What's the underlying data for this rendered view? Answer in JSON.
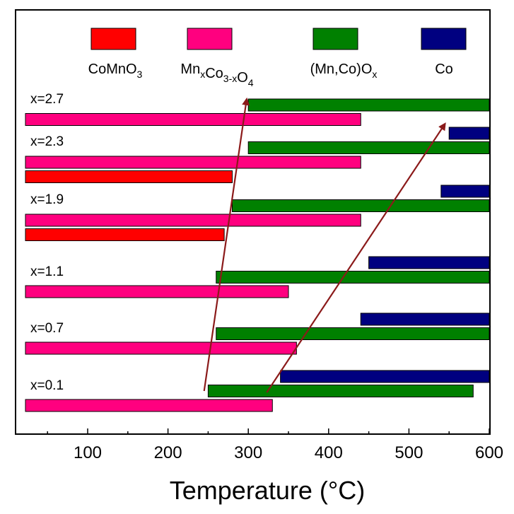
{
  "chart_data": {
    "type": "bar",
    "orientation": "horizontal-range",
    "title": "",
    "xlabel": "Temperature (°C)",
    "ylabel": "",
    "xlim": [
      20,
      600
    ],
    "xticks": [
      "100",
      "200",
      "300",
      "400",
      "500",
      "600"
    ],
    "legend_position": "top",
    "series": [
      {
        "name": "CoMnO",
        "sub": "3",
        "color": "#ff0000"
      },
      {
        "name": "Mn",
        "sub": "x",
        "name2": "Co",
        "sub2": "3-x",
        "name3": "O",
        "sub3": "4",
        "color": "#ff007f"
      },
      {
        "name": "(Mn,Co)O",
        "sub": "x",
        "color": "#008000"
      },
      {
        "name": "Co",
        "color": "#000080"
      }
    ],
    "groups": [
      {
        "label": "x=2.7",
        "bars": [
          {
            "series": 2,
            "start": 300,
            "end": 600
          },
          {
            "series": 1,
            "start": 20,
            "end": 440
          }
        ]
      },
      {
        "label": "x=2.3",
        "bars": [
          {
            "series": 3,
            "start": 550,
            "end": 600
          },
          {
            "series": 2,
            "start": 300,
            "end": 600
          },
          {
            "series": 1,
            "start": 20,
            "end": 440
          },
          {
            "series": 0,
            "start": 20,
            "end": 280
          }
        ]
      },
      {
        "label": "x=1.9",
        "bars": [
          {
            "series": 3,
            "start": 540,
            "end": 600
          },
          {
            "series": 2,
            "start": 280,
            "end": 600
          },
          {
            "series": 1,
            "start": 20,
            "end": 440
          },
          {
            "series": 0,
            "start": 20,
            "end": 270
          }
        ]
      },
      {
        "label": "x=1.1",
        "bars": [
          {
            "series": 3,
            "start": 450,
            "end": 600
          },
          {
            "series": 2,
            "start": 260,
            "end": 600
          },
          {
            "series": 1,
            "start": 20,
            "end": 350
          }
        ]
      },
      {
        "label": "x=0.7",
        "bars": [
          {
            "series": 3,
            "start": 440,
            "end": 600
          },
          {
            "series": 2,
            "start": 260,
            "end": 600
          },
          {
            "series": 1,
            "start": 20,
            "end": 360
          }
        ]
      },
      {
        "label": "x=0.1",
        "bars": [
          {
            "series": 3,
            "start": 340,
            "end": 600
          },
          {
            "series": 2,
            "start": 250,
            "end": 580
          },
          {
            "series": 1,
            "start": 20,
            "end": 330
          }
        ]
      }
    ],
    "arrows": [
      {
        "from_x": 245,
        "to_x": 298,
        "color": "#8b1a1a"
      },
      {
        "from_x": 323,
        "to_x": 545,
        "color": "#8b1a1a"
      }
    ]
  }
}
